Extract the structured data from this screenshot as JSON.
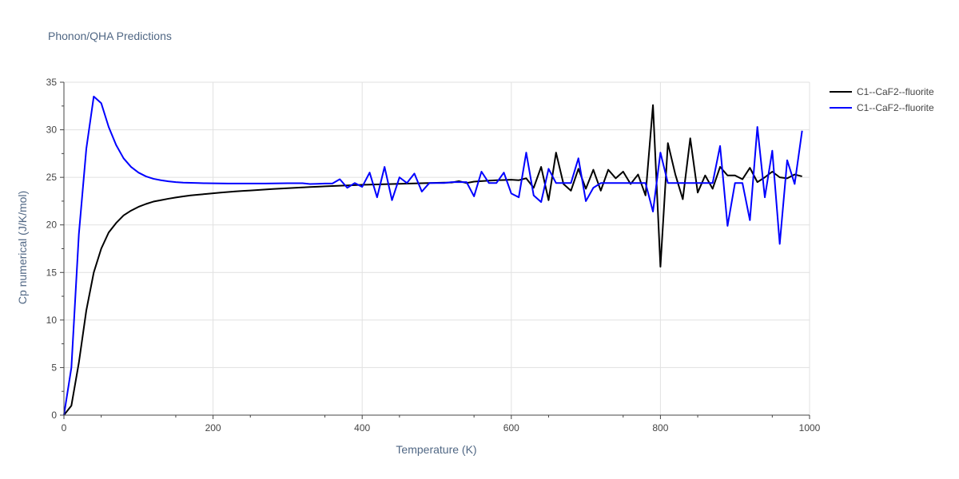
{
  "chart_data": {
    "type": "line",
    "title": "Phonon/QHA Predictions",
    "xlabel": "Temperature (K)",
    "ylabel": "Cp numerical (J/K/mol)",
    "xlim": [
      0,
      1000
    ],
    "ylim": [
      0,
      35
    ],
    "x_ticks": [
      0,
      200,
      400,
      600,
      800,
      1000
    ],
    "y_ticks": [
      0,
      5,
      10,
      15,
      20,
      25,
      30,
      35
    ],
    "grid": true,
    "legend_position": "top-right",
    "series": [
      {
        "name": "C1--CaF2--fluorite",
        "color": "#000000",
        "x": [
          0,
          10,
          20,
          30,
          40,
          50,
          60,
          70,
          80,
          90,
          100,
          110,
          120,
          130,
          140,
          150,
          160,
          170,
          180,
          190,
          200,
          210,
          220,
          230,
          240,
          250,
          260,
          270,
          280,
          290,
          300,
          310,
          320,
          330,
          340,
          350,
          360,
          370,
          380,
          390,
          400,
          410,
          420,
          430,
          440,
          450,
          460,
          470,
          480,
          490,
          500,
          510,
          520,
          530,
          540,
          550,
          560,
          570,
          580,
          590,
          600,
          610,
          620,
          630,
          640,
          650,
          660,
          670,
          680,
          690,
          700,
          710,
          720,
          730,
          740,
          750,
          760,
          770,
          780,
          790,
          800,
          810,
          820,
          830,
          840,
          850,
          860,
          870,
          880,
          890,
          900,
          910,
          920,
          930,
          940,
          950,
          960,
          970,
          980,
          990
        ],
        "y": [
          0,
          1.0,
          5.5,
          11.0,
          15.0,
          17.5,
          19.2,
          20.2,
          21.0,
          21.5,
          21.9,
          22.2,
          22.45,
          22.6,
          22.75,
          22.88,
          23.0,
          23.1,
          23.18,
          23.25,
          23.32,
          23.4,
          23.46,
          23.52,
          23.57,
          23.62,
          23.67,
          23.72,
          23.77,
          23.82,
          23.86,
          23.9,
          23.94,
          23.98,
          24.02,
          24.06,
          24.09,
          24.12,
          24.15,
          24.18,
          24.21,
          24.24,
          24.26,
          24.28,
          24.3,
          24.32,
          24.34,
          24.36,
          24.38,
          24.4,
          24.42,
          24.44,
          24.46,
          24.6,
          24.4,
          24.55,
          24.6,
          24.65,
          24.7,
          24.72,
          24.75,
          24.7,
          24.9,
          23.9,
          26.1,
          22.6,
          27.6,
          24.3,
          23.6,
          25.9,
          23.8,
          25.8,
          23.6,
          25.8,
          24.9,
          25.6,
          24.3,
          25.3,
          23.1,
          32.6,
          15.6,
          28.6,
          25.3,
          22.7,
          29.1,
          23.4,
          25.2,
          23.8,
          26.1,
          25.2,
          25.2,
          24.8,
          26.0,
          24.5,
          25.0,
          25.6,
          25.0,
          24.9,
          25.3,
          25.1
        ]
      },
      {
        "name": "C1--CaF2--fluorite",
        "color": "#0000ff",
        "x": [
          0,
          10,
          20,
          30,
          40,
          50,
          60,
          70,
          80,
          90,
          100,
          110,
          120,
          130,
          140,
          150,
          160,
          170,
          180,
          190,
          200,
          210,
          220,
          230,
          240,
          250,
          260,
          270,
          280,
          290,
          300,
          310,
          320,
          330,
          340,
          350,
          360,
          370,
          380,
          390,
          400,
          410,
          420,
          430,
          440,
          450,
          460,
          470,
          480,
          490,
          500,
          510,
          520,
          530,
          540,
          550,
          560,
          570,
          580,
          590,
          600,
          610,
          620,
          630,
          640,
          650,
          660,
          670,
          680,
          690,
          700,
          710,
          720,
          730,
          740,
          750,
          760,
          770,
          780,
          790,
          800,
          810,
          820,
          830,
          840,
          850,
          860,
          870,
          880,
          890,
          900,
          910,
          920,
          930,
          940,
          950,
          960,
          970,
          980,
          990
        ],
        "y": [
          0,
          5.0,
          19.0,
          28.0,
          33.5,
          32.8,
          30.3,
          28.4,
          27.0,
          26.1,
          25.5,
          25.1,
          24.85,
          24.7,
          24.58,
          24.5,
          24.45,
          24.42,
          24.4,
          24.38,
          24.37,
          24.36,
          24.35,
          24.35,
          24.35,
          24.35,
          24.35,
          24.35,
          24.36,
          24.37,
          24.38,
          24.38,
          24.38,
          24.3,
          24.32,
          24.35,
          24.35,
          24.8,
          23.9,
          24.4,
          24.0,
          25.5,
          22.9,
          26.1,
          22.6,
          25.0,
          24.4,
          25.4,
          23.5,
          24.4,
          24.4,
          24.4,
          24.5,
          24.5,
          24.5,
          23.0,
          25.6,
          24.4,
          24.4,
          25.5,
          23.3,
          22.9,
          27.6,
          23.1,
          22.4,
          25.9,
          24.4,
          24.4,
          24.4,
          27.0,
          22.5,
          23.9,
          24.4,
          24.4,
          24.4,
          24.4,
          24.4,
          24.4,
          24.4,
          21.4,
          27.6,
          24.4,
          24.4,
          24.4,
          24.4,
          24.4,
          24.4,
          24.4,
          28.3,
          19.9,
          24.4,
          24.4,
          20.5,
          30.3,
          22.9,
          27.8,
          18.0,
          26.8,
          24.3,
          29.9
        ]
      }
    ]
  }
}
